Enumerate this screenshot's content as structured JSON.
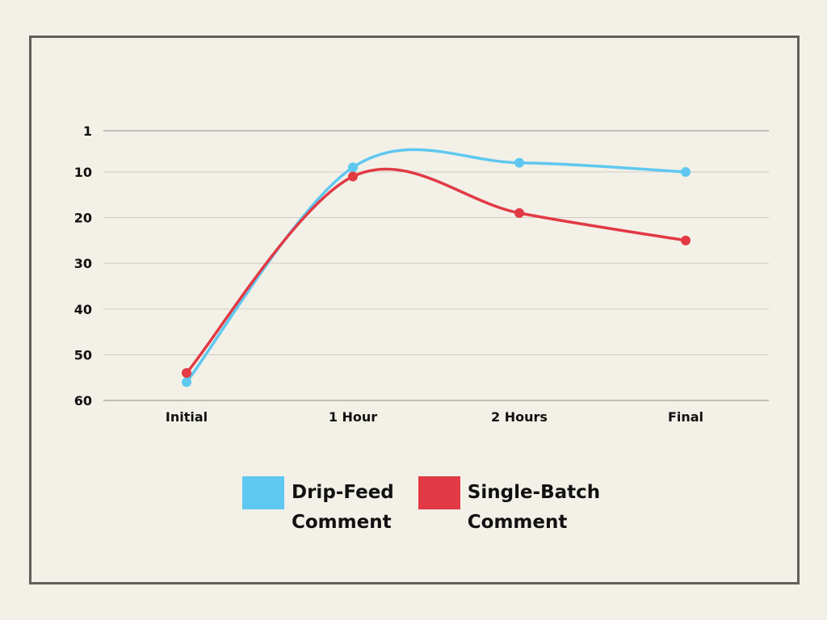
{
  "chart_data": {
    "type": "line",
    "categories": [
      "Initial",
      "1 Hour",
      "2 Hours",
      "Final"
    ],
    "y_ticks": [
      "1",
      "10",
      "20",
      "30",
      "40",
      "50",
      "60"
    ],
    "y_tick_values": [
      1,
      10,
      20,
      30,
      40,
      50,
      60
    ],
    "ylim": [
      1,
      60
    ],
    "y_inverted": true,
    "grid": true,
    "legend_position": "bottom-center",
    "series": [
      {
        "name": "Drip-Feed Comment",
        "name_lines": [
          "Drip-Feed",
          "Comment"
        ],
        "color": "#5fc8f0",
        "values": [
          56,
          9,
          8,
          10
        ]
      },
      {
        "name": "Single-Batch Comment",
        "name_lines": [
          "Single-Batch",
          "Comment"
        ],
        "color": "#e23a45",
        "values": [
          54,
          11,
          19,
          25
        ]
      }
    ]
  }
}
